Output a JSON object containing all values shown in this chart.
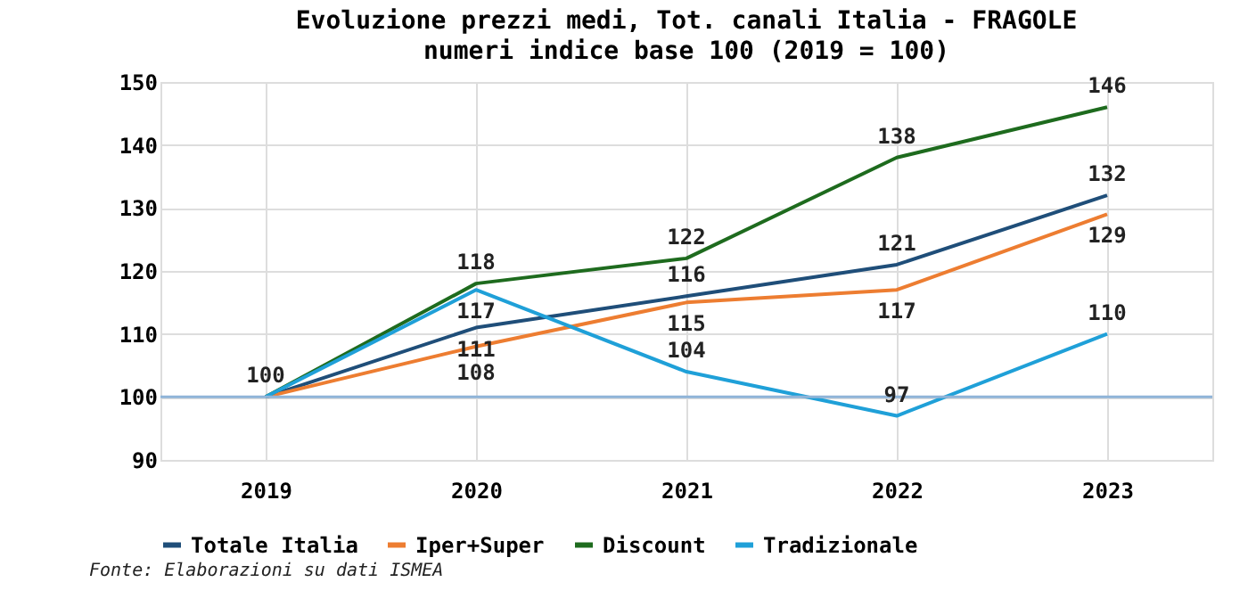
{
  "chart_data": {
    "type": "line",
    "title": "Evoluzione prezzi medi, Tot. canali Italia - FRAGOLE",
    "subtitle": "numeri indice base 100 (2019 = 100)",
    "categories": [
      "2019",
      "2020",
      "2021",
      "2022",
      "2023"
    ],
    "series": [
      {
        "name": "Totale Italia",
        "color": "#1f4e79",
        "values": [
          100,
          111,
          116,
          121,
          132
        ],
        "value_labels": [
          "100",
          "111",
          "116",
          "121",
          "132"
        ]
      },
      {
        "name": "Iper+Super",
        "color": "#ed7d31",
        "values": [
          100,
          108,
          115,
          117,
          129
        ],
        "value_labels": [
          null,
          "108",
          "115",
          "117",
          "129"
        ]
      },
      {
        "name": "Discount",
        "color": "#1e6b1e",
        "values": [
          100,
          118,
          122,
          138,
          146
        ],
        "value_labels": [
          null,
          "118",
          "122",
          "138",
          "146"
        ]
      },
      {
        "name": "Tradizionale",
        "color": "#1fa0d8",
        "values": [
          100,
          117,
          104,
          97,
          110
        ],
        "value_labels": [
          null,
          "117",
          "104",
          "97",
          "110"
        ]
      }
    ],
    "ylim": [
      90,
      150
    ],
    "yticks": [
      90,
      100,
      110,
      120,
      130,
      140,
      150
    ],
    "grid": true,
    "legend": "bottom",
    "marker": "none",
    "line_style": "solid",
    "ref_lines": [
      {
        "axis": "y",
        "value": 100,
        "color": "#8fb4d8"
      }
    ],
    "annotations": [
      "Fonte: Elaborazioni su dati ISMEA"
    ]
  }
}
